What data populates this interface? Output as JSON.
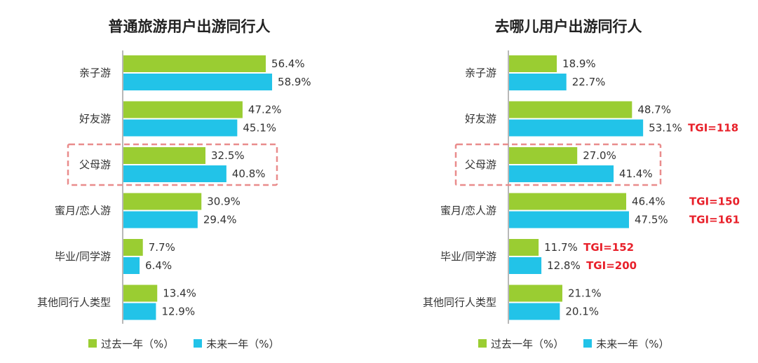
{
  "colors": {
    "past": "#9ACD32",
    "future": "#22C3E8",
    "tgi": "#E8202A",
    "highlight": "#E98C8C"
  },
  "legend": {
    "past": "过去一年（%）",
    "future": "未来一年（%）"
  },
  "chart_data": [
    {
      "type": "bar",
      "orientation": "horizontal",
      "title": "普通旅游用户出游同行人",
      "categories": [
        "亲子游",
        "好友游",
        "父母游",
        "蜜月/恋人游",
        "毕业/同学游",
        "其他同行人类型"
      ],
      "series": [
        {
          "name": "过去一年（%）",
          "values": [
            56.4,
            47.2,
            32.5,
            30.9,
            7.7,
            13.4
          ]
        },
        {
          "name": "未来一年（%）",
          "values": [
            58.9,
            45.1,
            40.8,
            29.4,
            6.4,
            12.9
          ]
        }
      ],
      "value_labels": {
        "past": [
          "56.4%",
          "47.2%",
          "32.5%",
          "30.9%",
          "7.7%",
          "13.4%"
        ],
        "future": [
          "58.9%",
          "45.1%",
          "40.8%",
          "29.4%",
          "6.4%",
          "12.9%"
        ]
      },
      "annotations": [],
      "highlighted_category": "父母游",
      "legend_position": "bottom"
    },
    {
      "type": "bar",
      "orientation": "horizontal",
      "title": "去哪儿用户出游同行人",
      "categories": [
        "亲子游",
        "好友游",
        "父母游",
        "蜜月/恋人游",
        "毕业/同学游",
        "其他同行人类型"
      ],
      "series": [
        {
          "name": "过去一年（%）",
          "values": [
            18.9,
            48.7,
            27.0,
            46.4,
            11.7,
            21.1
          ]
        },
        {
          "name": "未来一年（%）",
          "values": [
            22.7,
            53.1,
            41.4,
            47.5,
            12.8,
            20.1
          ]
        }
      ],
      "value_labels": {
        "past": [
          "18.9%",
          "48.7%",
          "27.0%",
          "46.4%",
          "11.7%",
          "21.1%"
        ],
        "future": [
          "22.7%",
          "53.1%",
          "41.4%",
          "47.5%",
          "12.8%",
          "20.1%"
        ]
      },
      "annotations": [
        {
          "category": "好友游",
          "series": "future",
          "text": "TGI=118"
        },
        {
          "category": "蜜月/恋人游",
          "series": "past",
          "text": "TGI=150"
        },
        {
          "category": "蜜月/恋人游",
          "series": "future",
          "text": "TGI=161"
        },
        {
          "category": "毕业/同学游",
          "series": "past",
          "text": "TGI=152"
        },
        {
          "category": "毕业/同学游",
          "series": "future",
          "text": "TGI=200"
        }
      ],
      "highlighted_category": "父母游",
      "legend_position": "bottom"
    }
  ]
}
